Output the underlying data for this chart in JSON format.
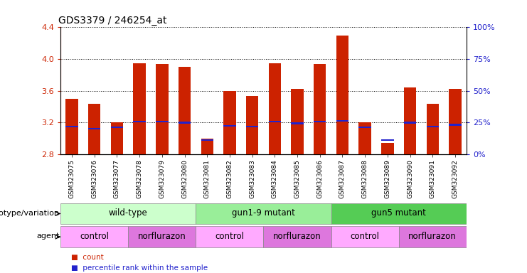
{
  "title": "GDS3379 / 246254_at",
  "samples": [
    "GSM323075",
    "GSM323076",
    "GSM323077",
    "GSM323078",
    "GSM323079",
    "GSM323080",
    "GSM323081",
    "GSM323082",
    "GSM323083",
    "GSM323084",
    "GSM323085",
    "GSM323086",
    "GSM323087",
    "GSM323088",
    "GSM323089",
    "GSM323090",
    "GSM323091",
    "GSM323092"
  ],
  "counts": [
    3.5,
    3.44,
    3.2,
    3.95,
    3.94,
    3.9,
    3.0,
    3.6,
    3.53,
    3.95,
    3.62,
    3.94,
    4.3,
    3.2,
    2.94,
    3.64,
    3.44,
    3.62
  ],
  "percentiles": [
    3.15,
    3.12,
    3.14,
    3.21,
    3.21,
    3.2,
    2.98,
    3.16,
    3.15,
    3.21,
    3.19,
    3.21,
    3.22,
    3.14,
    2.98,
    3.2,
    3.15,
    3.17
  ],
  "ylim_left": [
    2.8,
    4.4
  ],
  "ylim_right": [
    0,
    100
  ],
  "yticks_left": [
    2.8,
    3.2,
    3.6,
    4.0,
    4.4
  ],
  "yticks_right": [
    0,
    25,
    50,
    75,
    100
  ],
  "bar_color": "#cc2200",
  "percentile_color": "#2222cc",
  "bar_bottom": 2.8,
  "genotype_groups": [
    {
      "label": "wild-type",
      "start": 0,
      "end": 6,
      "color": "#ccffcc"
    },
    {
      "label": "gun1-9 mutant",
      "start": 6,
      "end": 12,
      "color": "#99ee99"
    },
    {
      "label": "gun5 mutant",
      "start": 12,
      "end": 18,
      "color": "#55cc55"
    }
  ],
  "agent_groups": [
    {
      "label": "control",
      "start": 0,
      "end": 3,
      "color": "#ffaaff"
    },
    {
      "label": "norflurazon",
      "start": 3,
      "end": 6,
      "color": "#dd77dd"
    },
    {
      "label": "control",
      "start": 6,
      "end": 9,
      "color": "#ffaaff"
    },
    {
      "label": "norflurazon",
      "start": 9,
      "end": 12,
      "color": "#dd77dd"
    },
    {
      "label": "control",
      "start": 12,
      "end": 15,
      "color": "#ffaaff"
    },
    {
      "label": "norflurazon",
      "start": 15,
      "end": 18,
      "color": "#dd77dd"
    }
  ],
  "genotype_label": "genotype/variation",
  "agent_label": "agent",
  "legend_count": "count",
  "legend_percentile": "percentile rank within the sample",
  "bar_color_hex": "#cc2200",
  "percentile_color_hex": "#2222cc",
  "tick_label_color_left": "#cc2200",
  "tick_label_color_right": "#2222cc",
  "title_fontsize": 10,
  "bar_width": 0.55
}
